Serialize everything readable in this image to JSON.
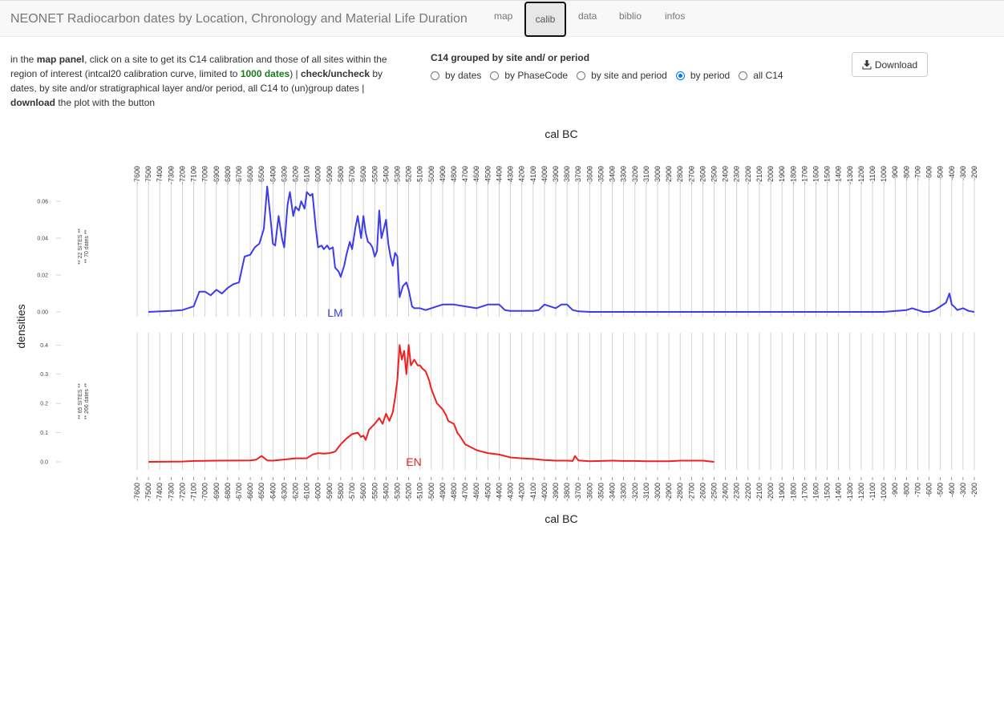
{
  "navbar": {
    "brand": "NEONET Radiocarbon dates by Location, Chronology and Material Life Duration",
    "tabs": [
      {
        "label": "map",
        "active": false
      },
      {
        "label": "calib",
        "active": true
      },
      {
        "label": "data",
        "active": false
      },
      {
        "label": "biblio",
        "active": false
      },
      {
        "label": "infos",
        "active": false
      }
    ]
  },
  "info": {
    "p1": "in the ",
    "b1": "map panel",
    "p2": ", click on a site to get its C14 calibration and those of all sites within the region of interest (intcal20 calibration curve, limited to ",
    "g1": "1000 dates",
    "p3": ") | ",
    "b2": "check/uncheck",
    "p4": " by dates, by site and/or stratigraphical layer and/or period, all C14 to (un)group dates | ",
    "b3": "download",
    "p5": " the plot with the button"
  },
  "grouping": {
    "title": "C14 grouped by site and/ or period",
    "options": [
      "by dates",
      "by PhaseCode",
      "by site and period",
      "by period",
      "all C14"
    ],
    "selected": "by period"
  },
  "download_button": {
    "label": "Download",
    "icon": "download-icon"
  },
  "chart_data": {
    "type": "line",
    "x_axis_label": "cal BC",
    "y_axis_label": "densities",
    "x_range": [
      -7600,
      -200
    ],
    "top_tick_labels_start": -7600,
    "bottom_tick_labels_start": -7600,
    "tick_step": 100,
    "panels": [
      {
        "period_label": "LM",
        "side_label_1": "** 22 SITES **",
        "side_label_2": "** 70 dates **",
        "color": "#3b3bf0",
        "y_ticks": [
          "0.00",
          "0.02",
          "0.04",
          "0.06"
        ],
        "y_max": 0.07,
        "x": [
          -7500,
          -7300,
          -7200,
          -7100,
          -7050,
          -7000,
          -6950,
          -6900,
          -6850,
          -6800,
          -6750,
          -6700,
          -6650,
          -6600,
          -6560,
          -6520,
          -6480,
          -6450,
          -6420,
          -6400,
          -6380,
          -6350,
          -6320,
          -6300,
          -6270,
          -6250,
          -6220,
          -6200,
          -6170,
          -6150,
          -6120,
          -6100,
          -6070,
          -6050,
          -6020,
          -6000,
          -5970,
          -5950,
          -5920,
          -5900,
          -5870,
          -5850,
          -5820,
          -5800,
          -5770,
          -5750,
          -5720,
          -5700,
          -5670,
          -5650,
          -5620,
          -5600,
          -5580,
          -5560,
          -5540,
          -5520,
          -5500,
          -5480,
          -5460,
          -5440,
          -5420,
          -5400,
          -5380,
          -5360,
          -5340,
          -5320,
          -5300,
          -5280,
          -5250,
          -5220,
          -5200,
          -5170,
          -5150,
          -5120,
          -5100,
          -5050,
          -5000,
          -4900,
          -4800,
          -4700,
          -4600,
          -4500,
          -4400,
          -4350,
          -4300,
          -4200,
          -4100,
          -4050,
          -4000,
          -3950,
          -3900,
          -3850,
          -3800,
          -3750,
          -3700,
          -3600,
          -3000,
          -2000,
          -1000,
          -800,
          -750,
          -700,
          -650,
          -600,
          -550,
          -500,
          -450,
          -420,
          -400,
          -380,
          -350,
          -300,
          -250,
          -200
        ],
        "y": [
          0.0,
          0.0005,
          0.001,
          0.003,
          0.011,
          0.011,
          0.009,
          0.012,
          0.01,
          0.013,
          0.015,
          0.016,
          0.03,
          0.031,
          0.035,
          0.037,
          0.045,
          0.068,
          0.05,
          0.037,
          0.036,
          0.052,
          0.04,
          0.035,
          0.058,
          0.065,
          0.052,
          0.057,
          0.055,
          0.06,
          0.056,
          0.065,
          0.063,
          0.064,
          0.045,
          0.035,
          0.036,
          0.034,
          0.036,
          0.034,
          0.035,
          0.024,
          0.022,
          0.019,
          0.025,
          0.031,
          0.038,
          0.034,
          0.046,
          0.052,
          0.04,
          0.052,
          0.043,
          0.038,
          0.037,
          0.035,
          0.03,
          0.033,
          0.055,
          0.04,
          0.045,
          0.05,
          0.037,
          0.03,
          0.025,
          0.032,
          0.03,
          0.008,
          0.014,
          0.016,
          0.012,
          0.003,
          0.002,
          0.002,
          0.002,
          0.001,
          0.002,
          0.004,
          0.004,
          0.003,
          0.002,
          0.004,
          0.004,
          0.001,
          0.0005,
          0.0005,
          0.0005,
          0.001,
          0.004,
          0.003,
          0.002,
          0.004,
          0.004,
          0.001,
          0.0003,
          0.0,
          0.0,
          0.0,
          0.0,
          0.001,
          0.002,
          0.001,
          0.0,
          0.0,
          0.001,
          0.003,
          0.005,
          0.01,
          0.004,
          0.003,
          0.001,
          0.002,
          0.0005,
          0.0
        ]
      },
      {
        "period_label": "EN",
        "side_label_1": "** 65 SITES **",
        "side_label_2": "** 266 dates **",
        "color": "#f02020",
        "y_ticks": [
          "0.0",
          "0.1",
          "0.2",
          "0.3",
          "0.4"
        ],
        "y_max": 0.42,
        "x": [
          -7500,
          -7200,
          -7100,
          -6900,
          -6600,
          -6550,
          -6500,
          -6450,
          -6400,
          -6300,
          -6200,
          -6100,
          -6050,
          -6000,
          -5950,
          -5900,
          -5850,
          -5800,
          -5750,
          -5700,
          -5650,
          -5620,
          -5600,
          -5580,
          -5550,
          -5500,
          -5460,
          -5430,
          -5400,
          -5370,
          -5340,
          -5320,
          -5300,
          -5280,
          -5260,
          -5240,
          -5220,
          -5200,
          -5180,
          -5150,
          -5120,
          -5100,
          -5080,
          -5050,
          -5020,
          -5000,
          -4970,
          -4950,
          -4900,
          -4870,
          -4850,
          -4800,
          -4770,
          -4750,
          -4700,
          -4650,
          -4600,
          -4550,
          -4500,
          -4400,
          -4300,
          -4200,
          -4100,
          -4000,
          -3900,
          -3800,
          -3750,
          -3730,
          -3700,
          -3600,
          -3500,
          -3400,
          -3300,
          -3200,
          -3100,
          -3000,
          -2900,
          -2800,
          -2700,
          -2600,
          -2500
        ],
        "y": [
          0.0,
          0.001,
          0.003,
          0.004,
          0.005,
          0.007,
          0.02,
          0.005,
          0.004,
          0.008,
          0.012,
          0.012,
          0.025,
          0.03,
          0.028,
          0.03,
          0.035,
          0.06,
          0.08,
          0.095,
          0.1,
          0.085,
          0.09,
          0.075,
          0.11,
          0.13,
          0.15,
          0.13,
          0.165,
          0.14,
          0.17,
          0.22,
          0.28,
          0.4,
          0.35,
          0.38,
          0.3,
          0.4,
          0.33,
          0.35,
          0.33,
          0.33,
          0.32,
          0.31,
          0.28,
          0.25,
          0.22,
          0.2,
          0.18,
          0.16,
          0.14,
          0.13,
          0.1,
          0.09,
          0.06,
          0.05,
          0.04,
          0.035,
          0.03,
          0.025,
          0.015,
          0.012,
          0.01,
          0.006,
          0.004,
          0.004,
          0.003,
          0.02,
          0.005,
          0.002,
          0.003,
          0.004,
          0.003,
          0.003,
          0.002,
          0.002,
          0.002,
          0.004,
          0.004,
          0.004,
          0.0
        ]
      }
    ]
  }
}
